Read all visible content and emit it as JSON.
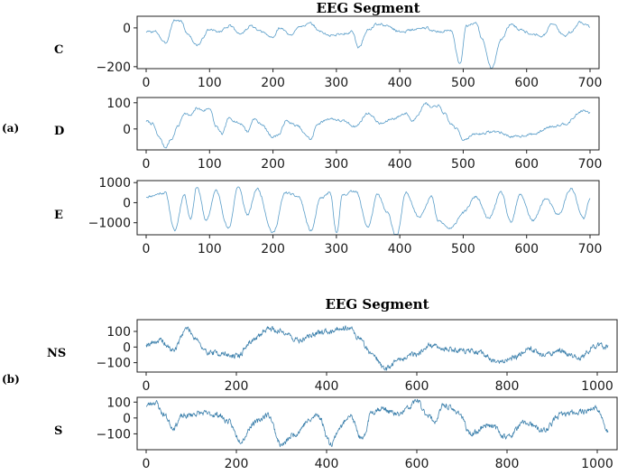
{
  "figure": {
    "panel_a_letter": "(a)",
    "panel_b_letter": "(b)"
  },
  "chart_data": [
    {
      "type": "line",
      "panel": "(a)",
      "title": "EEG Segment",
      "subplot_label": "C",
      "series_color": "#5b9ec9",
      "xlim": [
        0,
        700
      ],
      "ylim": [
        -210,
        60
      ],
      "xticks": [
        0,
        100,
        200,
        300,
        400,
        500,
        600,
        700
      ],
      "yticks": [
        0,
        -200
      ],
      "seed": 3,
      "anchors": [
        [
          0,
          -20
        ],
        [
          15,
          -20
        ],
        [
          30,
          -80
        ],
        [
          45,
          40
        ],
        [
          55,
          35
        ],
        [
          65,
          -30
        ],
        [
          80,
          -90
        ],
        [
          100,
          -10
        ],
        [
          115,
          -20
        ],
        [
          130,
          10
        ],
        [
          150,
          -30
        ],
        [
          165,
          10
        ],
        [
          180,
          -20
        ],
        [
          200,
          -50
        ],
        [
          210,
          0
        ],
        [
          230,
          -40
        ],
        [
          240,
          10
        ],
        [
          260,
          20
        ],
        [
          275,
          -20
        ],
        [
          290,
          -40
        ],
        [
          310,
          -30
        ],
        [
          325,
          -20
        ],
        [
          335,
          -100
        ],
        [
          350,
          -10
        ],
        [
          365,
          20
        ],
        [
          380,
          10
        ],
        [
          400,
          -20
        ],
        [
          420,
          -10
        ],
        [
          440,
          0
        ],
        [
          460,
          -20
        ],
        [
          480,
          -10
        ],
        [
          495,
          -190
        ],
        [
          505,
          10
        ],
        [
          520,
          30
        ],
        [
          530,
          -60
        ],
        [
          545,
          -210
        ],
        [
          560,
          -60
        ],
        [
          575,
          20
        ],
        [
          590,
          -10
        ],
        [
          610,
          -30
        ],
        [
          625,
          -40
        ],
        [
          640,
          20
        ],
        [
          660,
          -40
        ],
        [
          670,
          -20
        ],
        [
          685,
          30
        ],
        [
          700,
          10
        ]
      ]
    },
    {
      "type": "line",
      "panel": "(a)",
      "title": "",
      "subplot_label": "D",
      "series_color": "#5b9ec9",
      "xlim": [
        0,
        700
      ],
      "ylim": [
        -80,
        120
      ],
      "xticks": [
        0,
        100,
        200,
        300,
        400,
        500,
        600,
        700
      ],
      "yticks": [
        100,
        0
      ],
      "seed": 7,
      "anchors": [
        [
          0,
          30
        ],
        [
          10,
          20
        ],
        [
          20,
          -30
        ],
        [
          30,
          -70
        ],
        [
          40,
          -40
        ],
        [
          50,
          10
        ],
        [
          60,
          60
        ],
        [
          70,
          50
        ],
        [
          80,
          80
        ],
        [
          90,
          70
        ],
        [
          100,
          80
        ],
        [
          110,
          10
        ],
        [
          120,
          -20
        ],
        [
          130,
          40
        ],
        [
          150,
          20
        ],
        [
          160,
          -10
        ],
        [
          170,
          40
        ],
        [
          180,
          20
        ],
        [
          200,
          -30
        ],
        [
          210,
          -20
        ],
        [
          220,
          30
        ],
        [
          240,
          10
        ],
        [
          250,
          -20
        ],
        [
          260,
          -40
        ],
        [
          270,
          20
        ],
        [
          290,
          40
        ],
        [
          310,
          30
        ],
        [
          330,
          10
        ],
        [
          350,
          60
        ],
        [
          370,
          20
        ],
        [
          390,
          40
        ],
        [
          410,
          60
        ],
        [
          420,
          30
        ],
        [
          430,
          60
        ],
        [
          440,
          100
        ],
        [
          450,
          80
        ],
        [
          460,
          90
        ],
        [
          470,
          60
        ],
        [
          480,
          20
        ],
        [
          490,
          0
        ],
        [
          500,
          -40
        ],
        [
          520,
          -20
        ],
        [
          550,
          -10
        ],
        [
          580,
          -30
        ],
        [
          610,
          -20
        ],
        [
          640,
          10
        ],
        [
          660,
          20
        ],
        [
          690,
          70
        ],
        [
          700,
          60
        ]
      ]
    },
    {
      "type": "line",
      "panel": "(a)",
      "title": "",
      "subplot_label": "E",
      "series_color": "#5b9ec9",
      "xlim": [
        0,
        700
      ],
      "ylim": [
        -1600,
        1100
      ],
      "xticks": [
        0,
        100,
        200,
        300,
        400,
        500,
        600,
        700
      ],
      "yticks": [
        1000,
        0,
        -1000
      ],
      "seed": 11,
      "anchors": [
        [
          0,
          300
        ],
        [
          30,
          500
        ],
        [
          45,
          -1400
        ],
        [
          60,
          400
        ],
        [
          70,
          -800
        ],
        [
          80,
          800
        ],
        [
          95,
          -900
        ],
        [
          110,
          600
        ],
        [
          130,
          -1300
        ],
        [
          145,
          800
        ],
        [
          160,
          -600
        ],
        [
          175,
          700
        ],
        [
          200,
          -1500
        ],
        [
          220,
          500
        ],
        [
          240,
          300
        ],
        [
          260,
          -1400
        ],
        [
          275,
          200
        ],
        [
          290,
          500
        ],
        [
          300,
          -1500
        ],
        [
          310,
          400
        ],
        [
          330,
          600
        ],
        [
          350,
          -1200
        ],
        [
          365,
          400
        ],
        [
          380,
          -500
        ],
        [
          395,
          -1700
        ],
        [
          410,
          500
        ],
        [
          430,
          -700
        ],
        [
          450,
          300
        ],
        [
          460,
          -900
        ],
        [
          480,
          -1300
        ],
        [
          500,
          -500
        ],
        [
          520,
          300
        ],
        [
          540,
          -800
        ],
        [
          560,
          500
        ],
        [
          575,
          -1000
        ],
        [
          590,
          400
        ],
        [
          610,
          -900
        ],
        [
          630,
          200
        ],
        [
          650,
          -600
        ],
        [
          670,
          700
        ],
        [
          690,
          -800
        ],
        [
          700,
          200
        ]
      ]
    },
    {
      "type": "line",
      "panel": "(b)",
      "title": "EEG Segment",
      "subplot_label": "NS",
      "series_color": "#3f82ad",
      "xlim": [
        0,
        1024
      ],
      "ylim": [
        -160,
        175
      ],
      "xticks": [
        0,
        200,
        400,
        600,
        800,
        1000
      ],
      "yticks": [
        100,
        0,
        -100
      ],
      "seed": 19,
      "anchors": [
        [
          0,
          20
        ],
        [
          30,
          40
        ],
        [
          60,
          -20
        ],
        [
          90,
          120
        ],
        [
          110,
          60
        ],
        [
          130,
          -30
        ],
        [
          160,
          -40
        ],
        [
          200,
          -60
        ],
        [
          240,
          50
        ],
        [
          270,
          120
        ],
        [
          300,
          100
        ],
        [
          340,
          40
        ],
        [
          370,
          80
        ],
        [
          400,
          100
        ],
        [
          430,
          120
        ],
        [
          450,
          130
        ],
        [
          470,
          60
        ],
        [
          500,
          -40
        ],
        [
          530,
          -140
        ],
        [
          560,
          -80
        ],
        [
          600,
          -40
        ],
        [
          630,
          10
        ],
        [
          660,
          -10
        ],
        [
          700,
          -20
        ],
        [
          740,
          -40
        ],
        [
          780,
          -100
        ],
        [
          810,
          -70
        ],
        [
          850,
          -10
        ],
        [
          880,
          -50
        ],
        [
          920,
          -30
        ],
        [
          960,
          -70
        ],
        [
          1000,
          10
        ],
        [
          1024,
          0
        ]
      ]
    },
    {
      "type": "line",
      "panel": "(b)",
      "title": "",
      "subplot_label": "S",
      "series_color": "#3f82ad",
      "xlim": [
        0,
        1024
      ],
      "ylim": [
        -200,
        130
      ],
      "xticks": [
        0,
        200,
        400,
        600,
        800,
        1000
      ],
      "yticks": [
        100,
        0,
        -100
      ],
      "seed": 23,
      "anchors": [
        [
          0,
          80
        ],
        [
          20,
          100
        ],
        [
          40,
          20
        ],
        [
          60,
          -60
        ],
        [
          80,
          10
        ],
        [
          120,
          30
        ],
        [
          160,
          20
        ],
        [
          180,
          -20
        ],
        [
          210,
          -140
        ],
        [
          240,
          -30
        ],
        [
          270,
          20
        ],
        [
          300,
          -170
        ],
        [
          330,
          -100
        ],
        [
          360,
          -20
        ],
        [
          380,
          20
        ],
        [
          410,
          -160
        ],
        [
          430,
          -60
        ],
        [
          450,
          20
        ],
        [
          480,
          -140
        ],
        [
          500,
          40
        ],
        [
          520,
          60
        ],
        [
          560,
          20
        ],
        [
          580,
          60
        ],
        [
          600,
          110
        ],
        [
          620,
          30
        ],
        [
          640,
          -20
        ],
        [
          660,
          80
        ],
        [
          690,
          40
        ],
        [
          720,
          -100
        ],
        [
          760,
          -40
        ],
        [
          800,
          -120
        ],
        [
          840,
          -30
        ],
        [
          880,
          -80
        ],
        [
          920,
          20
        ],
        [
          960,
          40
        ],
        [
          1000,
          60
        ],
        [
          1024,
          -90
        ]
      ]
    }
  ]
}
